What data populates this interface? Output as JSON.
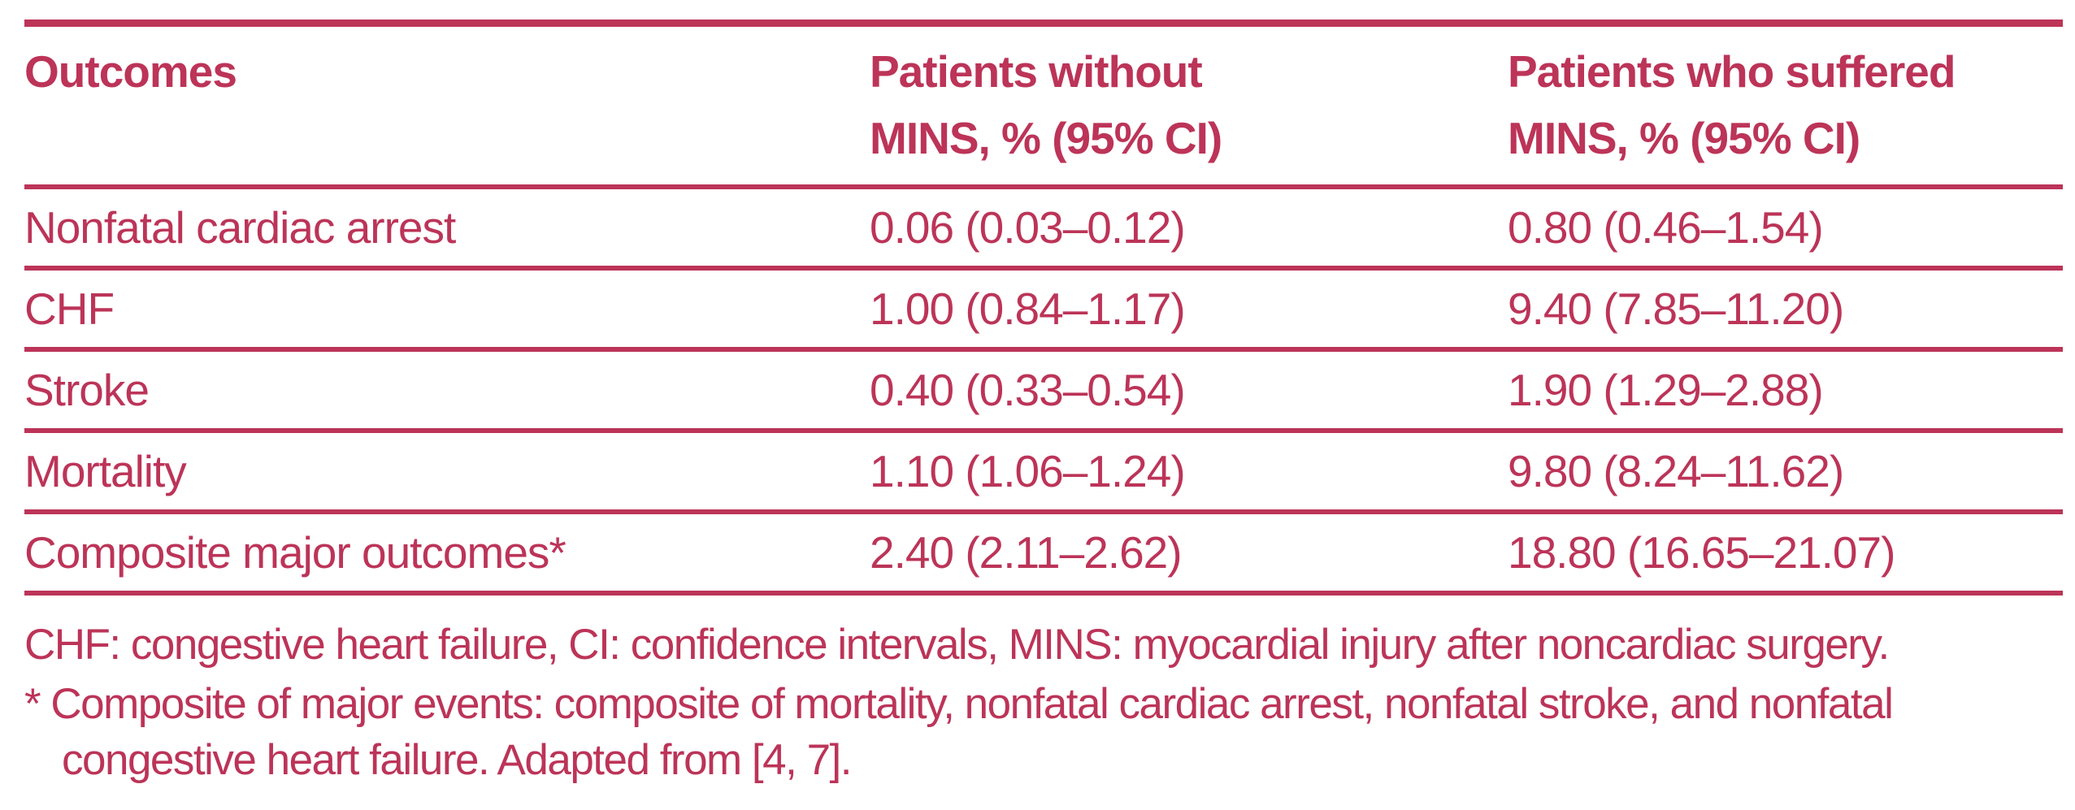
{
  "accent_color": "#bc3458",
  "background_color": "#ffffff",
  "table": {
    "header": {
      "col1": "Outcomes",
      "col2_lines": [
        "Patients without",
        "MINS, % (95% CI)"
      ],
      "col3_lines": [
        "Patients who suffered",
        "MINS, % (95% CI)"
      ]
    },
    "rows": [
      {
        "outcome": "Nonfatal cardiac arrest",
        "without_mins": "0.06 (0.03–0.12)",
        "with_mins": "0.80 (0.46–1.54)"
      },
      {
        "outcome": "CHF",
        "without_mins": "1.00 (0.84–1.17)",
        "with_mins": "9.40 (7.85–11.20)"
      },
      {
        "outcome": "Stroke",
        "without_mins": "0.40 (0.33–0.54)",
        "with_mins": "1.90 (1.29–2.88)"
      },
      {
        "outcome": "Mortality",
        "without_mins": "1.10 (1.06–1.24)",
        "with_mins": "9.80 (8.24–11.62)"
      },
      {
        "outcome": "Composite major outcomes*",
        "without_mins": "2.40 (2.11–2.62)",
        "with_mins": "18.80 (16.65–21.07)"
      }
    ]
  },
  "footnotes": {
    "abbreviations": "CHF: congestive heart failure, CI: confidence intervals, MINS: myocardial injury after noncardiac surgery.",
    "asterisk_note": "* Composite of major events: composite of mortality, nonfatal cardiac arrest, nonfatal stroke, and nonfatal congestive heart failure. Adapted from [4, 7]."
  }
}
